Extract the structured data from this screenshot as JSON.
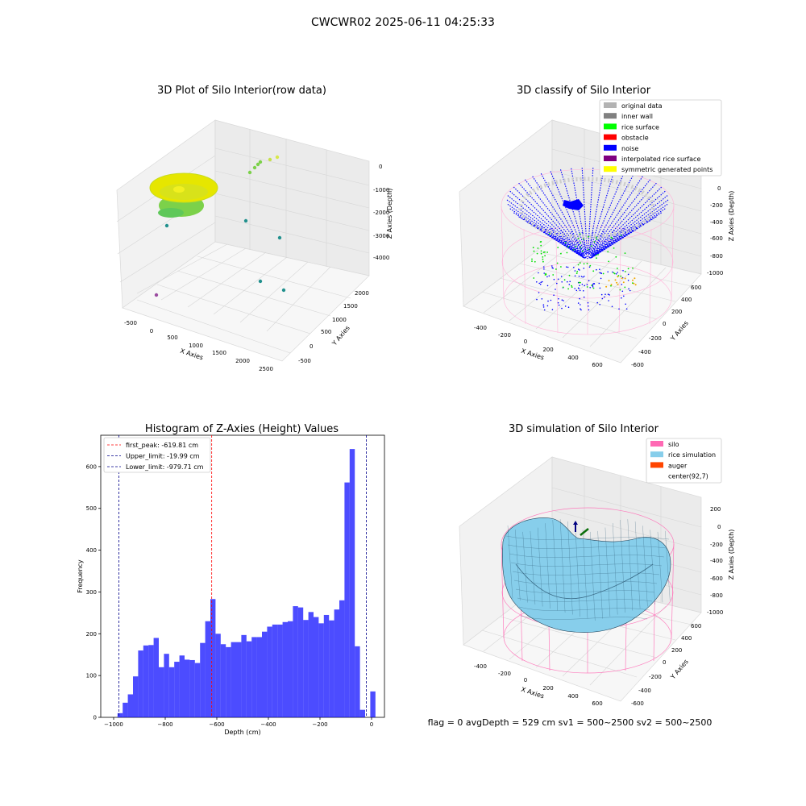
{
  "figure": {
    "suptitle": "CWCWR02 2025-06-11 04:25:33",
    "footer": "flag = 0     avgDepth = 529 cm  sv1 = 500~2500  sv2 = 500~2500"
  },
  "chart_data": [
    {
      "type": "scatter",
      "title": "3D Plot of Silo Interior(row data)",
      "xlabel": "X Axies",
      "ylabel": "Y Axies",
      "zlabel": "Z Axies (Depth)",
      "x_ticks": [
        "-500",
        "0",
        "500",
        "1000",
        "1500",
        "2000",
        "2500"
      ],
      "y_ticks": [
        "-500",
        "0",
        "500",
        "1000",
        "1500",
        "2000"
      ],
      "z_ticks": [
        "0",
        "-1000",
        "-2000",
        "-3000",
        "-4000"
      ],
      "colors": {
        "surface_main": "#e6e600",
        "surface_low": "#7cd14a",
        "outlier": "#21908d",
        "outlier_far": "#9b4ba0"
      }
    },
    {
      "type": "scatter",
      "title": "3D classify of Silo Interior",
      "xlabel": "X Axies",
      "ylabel": "Y Axies",
      "zlabel": "Z Axies (Depth)",
      "x_ticks": [
        "-400",
        "-200",
        "0",
        "200",
        "400",
        "600"
      ],
      "y_ticks": [
        "-600",
        "-400",
        "-200",
        "0",
        "200",
        "400",
        "600"
      ],
      "z_ticks": [
        "0",
        "-200",
        "-400",
        "-600",
        "-800",
        "-1000"
      ],
      "legend_position": "top-right",
      "legend": [
        {
          "label": "original data",
          "color": "#b3b3b3"
        },
        {
          "label": "inner wall",
          "color": "#808080"
        },
        {
          "label": "rice surface",
          "color": "#00ff00"
        },
        {
          "label": "obstacle",
          "color": "#ff0000"
        },
        {
          "label": "noise",
          "color": "#0000ff"
        },
        {
          "label": "interpolated rice surface",
          "color": "#800080"
        },
        {
          "label": "symmetric generated points",
          "color": "#ffff00"
        }
      ]
    },
    {
      "type": "bar",
      "title": "Histogram of Z-Axies (Height) Values",
      "xlabel": "Depth (cm)",
      "ylabel": "Frequency",
      "xlim": [
        -1050,
        50
      ],
      "ylim": [
        0,
        675
      ],
      "x_ticks": [
        -1000,
        -800,
        -600,
        -400,
        -200,
        0
      ],
      "y_ticks": [
        0,
        100,
        200,
        300,
        400,
        500,
        600
      ],
      "bin_start": -985,
      "bin_width": 20,
      "values": [
        10,
        35,
        55,
        98,
        160,
        172,
        173,
        190,
        120,
        152,
        120,
        133,
        148,
        138,
        137,
        130,
        178,
        230,
        283,
        200,
        175,
        168,
        180,
        180,
        197,
        182,
        192,
        192,
        205,
        217,
        222,
        222,
        228,
        230,
        266,
        263,
        233,
        252,
        240,
        225,
        245,
        232,
        258,
        280,
        562,
        642,
        170,
        18,
        0,
        62
      ],
      "bar_color": "#0000ff",
      "legend_position": "top-left",
      "reference_lines": [
        {
          "label": "first_peak: -619.81 cm",
          "x": -619.81,
          "color": "#ff0000"
        },
        {
          "label": "Upper_limit: -19.99 cm",
          "x": -19.99,
          "color": "#00008b"
        },
        {
          "label": "Lower_limit: -979.71 cm",
          "x": -979.71,
          "color": "#00008b"
        }
      ]
    },
    {
      "type": "area",
      "title": "3D simulation of Silo Interior",
      "xlabel": "X Axies",
      "ylabel": "Y Axies",
      "zlabel": "Z Axies (Depth)",
      "x_ticks": [
        "-400",
        "-200",
        "0",
        "200",
        "400",
        "600"
      ],
      "y_ticks": [
        "-600",
        "-400",
        "-200",
        "0",
        "200",
        "400",
        "600"
      ],
      "z_ticks": [
        "200",
        "0",
        "-200",
        "-400",
        "-600",
        "-800",
        "-1000"
      ],
      "legend_position": "top-right",
      "legend": [
        {
          "label": "silo",
          "color": "#ff69b4"
        },
        {
          "label": "rice simulation",
          "color": "#87ceeb"
        },
        {
          "label": "auger",
          "color": "#ff4500"
        },
        {
          "label": "center(92,7)",
          "color": "#ffffff"
        }
      ]
    }
  ]
}
